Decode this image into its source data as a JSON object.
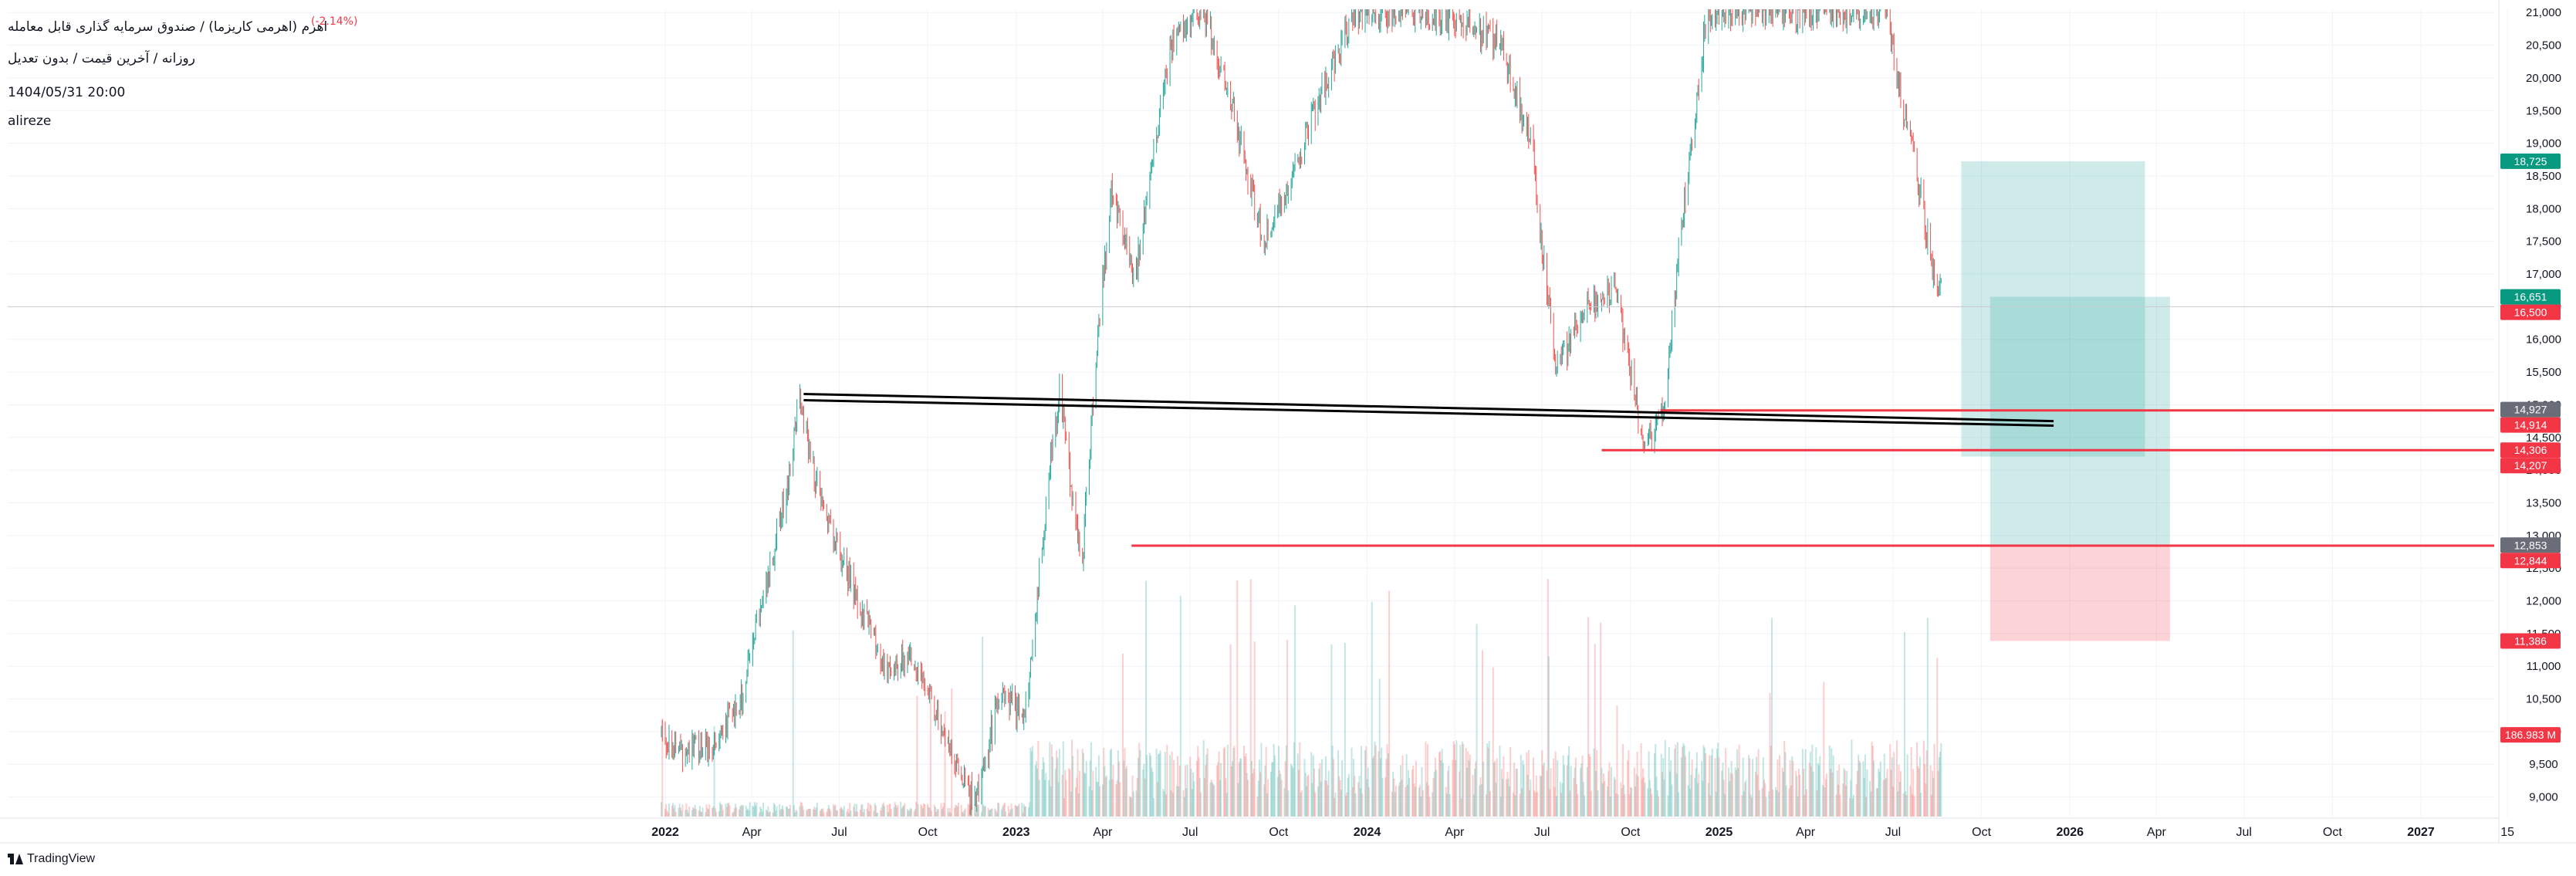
{
  "header": {
    "change_text": "(-2.14%)",
    "title": "اهرم (اهرمی کاریزما) / صندوق سرمایه گذاری قابل معامله",
    "subtitle": "روزانه / آخرین قیمت / بدون تعدیل",
    "datetime": "1404/05/31 20:00",
    "author": "alireze"
  },
  "brand": {
    "name": "TradingView",
    "icon": "tradingview-logo-icon"
  },
  "colors": {
    "up": "#26a69a",
    "down": "#ef5350",
    "red_line": "#f23645",
    "trend": "#000000",
    "profit_zone": "#26a69a",
    "loss_zone": "#f23645",
    "green_tag": "#089981",
    "red_tag": "#f23645",
    "gray_tag": "#6a6d78"
  },
  "chart_data": {
    "type": "candlestick",
    "y_axis": {
      "min": 8700,
      "max": 21050,
      "ticks": [
        9000,
        9500,
        10000,
        10500,
        11000,
        11500,
        12000,
        12500,
        13000,
        13500,
        14000,
        14500,
        15000,
        15500,
        16000,
        16500,
        17000,
        17500,
        18000,
        18500,
        19000,
        19500,
        20000,
        20500,
        21000
      ],
      "tick_labels": [
        "9,000",
        "9,500",
        "10,000",
        "10,500",
        "11,000",
        "11,500",
        "12,000",
        "12,500",
        "13,000",
        "13,500",
        "14,000",
        "14,500",
        "15,000",
        "15,500",
        "16,000",
        "16,500",
        "17,000",
        "17,500",
        "18,000",
        "18,500",
        "19,000",
        "19,500",
        "20,000",
        "20,500",
        "21,000"
      ]
    },
    "x_axis": {
      "ticks": [
        {
          "date": "2022-01-01",
          "label": "2022",
          "bold": true
        },
        {
          "date": "2022-04-01",
          "label": "Apr",
          "bold": false
        },
        {
          "date": "2022-07-01",
          "label": "Jul",
          "bold": false
        },
        {
          "date": "2022-10-01",
          "label": "Oct",
          "bold": false
        },
        {
          "date": "2023-01-01",
          "label": "2023",
          "bold": true
        },
        {
          "date": "2023-04-01",
          "label": "Apr",
          "bold": false
        },
        {
          "date": "2023-07-01",
          "label": "Jul",
          "bold": false
        },
        {
          "date": "2023-10-01",
          "label": "Oct",
          "bold": false
        },
        {
          "date": "2024-01-01",
          "label": "2024",
          "bold": true
        },
        {
          "date": "2024-04-01",
          "label": "Apr",
          "bold": false
        },
        {
          "date": "2024-07-01",
          "label": "Jul",
          "bold": false
        },
        {
          "date": "2024-10-01",
          "label": "Oct",
          "bold": false
        },
        {
          "date": "2025-01-01",
          "label": "2025",
          "bold": true
        },
        {
          "date": "2025-04-01",
          "label": "Apr",
          "bold": false
        },
        {
          "date": "2025-07-01",
          "label": "Jul",
          "bold": false
        },
        {
          "date": "2025-10-01",
          "label": "Oct",
          "bold": false
        },
        {
          "date": "2026-01-01",
          "label": "2026",
          "bold": true
        },
        {
          "date": "2026-04-01",
          "label": "Apr",
          "bold": false
        },
        {
          "date": "2026-07-01",
          "label": "Jul",
          "bold": false
        },
        {
          "date": "2026-10-01",
          "label": "Oct",
          "bold": false
        },
        {
          "date": "2027-01-01",
          "label": "2027",
          "bold": true
        },
        {
          "date": "2027-04-01",
          "label": "15",
          "bold": false
        }
      ]
    },
    "price_path": [
      {
        "date": "2021-12-28",
        "price": 10000
      },
      {
        "date": "2022-01-15",
        "price": 9700
      },
      {
        "date": "2022-02-15",
        "price": 9800
      },
      {
        "date": "2022-03-20",
        "price": 10400
      },
      {
        "date": "2022-04-20",
        "price": 12500
      },
      {
        "date": "2022-05-10",
        "price": 13900
      },
      {
        "date": "2022-05-20",
        "price": 15100
      },
      {
        "date": "2022-06-10",
        "price": 13600
      },
      {
        "date": "2022-07-20",
        "price": 12000
      },
      {
        "date": "2022-08-20",
        "price": 10900
      },
      {
        "date": "2022-09-15",
        "price": 11200
      },
      {
        "date": "2022-10-20",
        "price": 9800
      },
      {
        "date": "2022-11-20",
        "price": 8900
      },
      {
        "date": "2022-12-15",
        "price": 10600
      },
      {
        "date": "2023-01-10",
        "price": 10200
      },
      {
        "date": "2023-02-05",
        "price": 14000
      },
      {
        "date": "2023-02-15",
        "price": 15200
      },
      {
        "date": "2023-03-10",
        "price": 12500
      },
      {
        "date": "2023-03-25",
        "price": 15800
      },
      {
        "date": "2023-04-10",
        "price": 18200
      },
      {
        "date": "2023-05-05",
        "price": 17000
      },
      {
        "date": "2023-06-10",
        "price": 20500
      },
      {
        "date": "2023-07-15",
        "price": 21000
      },
      {
        "date": "2023-08-15",
        "price": 19500
      },
      {
        "date": "2023-09-15",
        "price": 17500
      },
      {
        "date": "2023-10-15",
        "price": 18500
      },
      {
        "date": "2023-11-20",
        "price": 20000
      },
      {
        "date": "2023-12-20",
        "price": 21000
      },
      {
        "date": "2024-02-15",
        "price": 21000
      },
      {
        "date": "2024-04-15",
        "price": 20800
      },
      {
        "date": "2024-05-20",
        "price": 20500
      },
      {
        "date": "2024-06-20",
        "price": 19000
      },
      {
        "date": "2024-07-15",
        "price": 15500
      },
      {
        "date": "2024-08-15",
        "price": 16500
      },
      {
        "date": "2024-09-15",
        "price": 16800
      },
      {
        "date": "2024-10-15",
        "price": 14300
      },
      {
        "date": "2024-11-05",
        "price": 15000
      },
      {
        "date": "2024-11-25",
        "price": 18000
      },
      {
        "date": "2024-12-20",
        "price": 21000
      },
      {
        "date": "2025-06-25",
        "price": 21000
      },
      {
        "date": "2025-07-05",
        "price": 20000
      },
      {
        "date": "2025-07-25",
        "price": 18600
      },
      {
        "date": "2025-08-10",
        "price": 17200
      },
      {
        "date": "2025-08-22",
        "price": 16600
      }
    ],
    "volume_max_label": "186.983 M"
  },
  "drawings": {
    "trend_lines": [
      {
        "name": "trendline-upper",
        "from": {
          "date": "2022-05-25",
          "price": 15165
        },
        "to": {
          "date": "2025-12-15",
          "price": 14750
        }
      },
      {
        "name": "trendline-lower",
        "from": {
          "date": "2022-05-25",
          "price": 15070
        },
        "to": {
          "date": "2025-12-15",
          "price": 14680
        }
      }
    ],
    "horizontal_rays": [
      {
        "name": "ray-14914",
        "price": 14914,
        "from_date": "2024-11-01"
      },
      {
        "name": "ray-14306",
        "price": 14306,
        "from_date": "2024-09-01"
      },
      {
        "name": "ray-12844",
        "price": 12844,
        "from_date": "2023-05-01"
      }
    ],
    "zones": [
      {
        "name": "long-position-a",
        "from_date": "2025-09-10",
        "to_date": "2026-03-20",
        "entry": 14207,
        "target": 18725,
        "stop": 14207
      },
      {
        "name": "long-position-b",
        "from_date": "2025-10-10",
        "to_date": "2026-04-15",
        "entry": 12853,
        "target": 16651,
        "stop": 11386
      }
    ],
    "last_price_line": 16500
  },
  "price_tags": [
    {
      "value": 18725,
      "label": "18,725",
      "kind": "green"
    },
    {
      "value": 16651,
      "label": "16,651",
      "kind": "green"
    },
    {
      "value": 16500,
      "label": "16,500",
      "kind": "red"
    },
    {
      "value": 14927,
      "label": "14,927",
      "kind": "gray"
    },
    {
      "value": 14914,
      "label": "14,914",
      "kind": "red"
    },
    {
      "value": 14306,
      "label": "14,306",
      "kind": "red"
    },
    {
      "value": 14207,
      "label": "14,207",
      "kind": "red"
    },
    {
      "value": 12853,
      "label": "12,853",
      "kind": "gray"
    },
    {
      "value": 12844,
      "label": "12,844",
      "kind": "red"
    },
    {
      "value": 11386,
      "label": "11,386",
      "kind": "red"
    },
    {
      "value": 9950,
      "label": "186.983 M",
      "kind": "red"
    }
  ]
}
